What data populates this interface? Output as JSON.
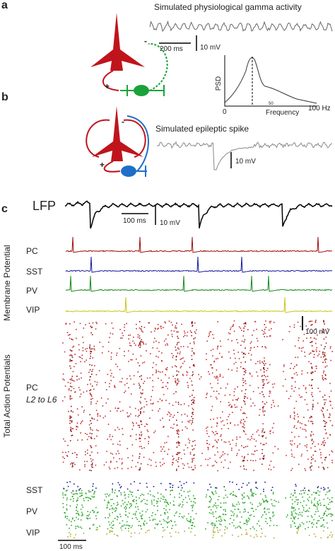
{
  "panel_a": {
    "label": "a",
    "title": "Simulated physiological gamma activity",
    "scale_time": "200 ms",
    "scale_voltage": "10 mV",
    "psd": {
      "ylabel": "PSD",
      "xlabel": "Frequency",
      "xticks": [
        "0",
        "50",
        "100 Hz"
      ]
    },
    "signs": [
      "+",
      "-"
    ]
  },
  "panel_b": {
    "label": "b",
    "title": "Simulated epileptic spike",
    "scale_voltage": "10 mV",
    "signs": [
      "+",
      "-"
    ]
  },
  "panel_c": {
    "label": "c",
    "lfp_label": "LFP",
    "lfp_scale_time": "100 ms",
    "lfp_scale_voltage": "10 mV",
    "membrane_axis": "Membrane Potential",
    "membrane_traces": [
      "PC",
      "SST",
      "PV",
      "VIP"
    ],
    "membrane_scale": "100 mV",
    "raster_axis": "Total Action Potentials",
    "raster_pc": "PC",
    "raster_pc_layers": "L2 to L6",
    "raster_groups": [
      "SST",
      "PV",
      "VIP"
    ],
    "raster_scale_time": "100 ms"
  }
}
